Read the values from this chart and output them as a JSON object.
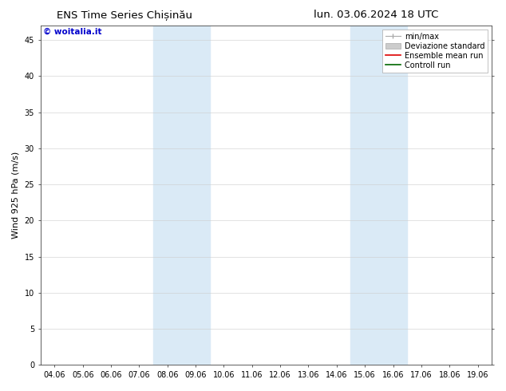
{
  "title_left": "ENS Time Series Chișinău",
  "title_right": "lun. 03.06.2024 18 UTC",
  "ylabel": "Wind 925 hPa (m/s)",
  "watermark": "© woitalia.it",
  "watermark_color": "#0000cc",
  "xtick_labels": [
    "04.06",
    "05.06",
    "06.06",
    "07.06",
    "08.06",
    "09.06",
    "10.06",
    "11.06",
    "12.06",
    "13.06",
    "14.06",
    "15.06",
    "16.06",
    "17.06",
    "18.06",
    "19.06"
  ],
  "shaded_bands": [
    {
      "xstart": "08.06",
      "xend": "10.06"
    },
    {
      "xstart": "15.06",
      "xend": "17.06"
    }
  ],
  "shaded_color": "#daeaf6",
  "bg_color": "#ffffff",
  "ylim": [
    0,
    47
  ],
  "yticks": [
    0,
    5,
    10,
    15,
    20,
    25,
    30,
    35,
    40,
    45
  ],
  "legend_minmax_color": "#aaaaaa",
  "legend_dev_color": "#cccccc",
  "legend_ens_color": "#dd0000",
  "legend_ctrl_color": "#006600",
  "title_fontsize": 9.5,
  "tick_fontsize": 7,
  "ylabel_fontsize": 8,
  "legend_fontsize": 7,
  "watermark_fontsize": 7.5
}
